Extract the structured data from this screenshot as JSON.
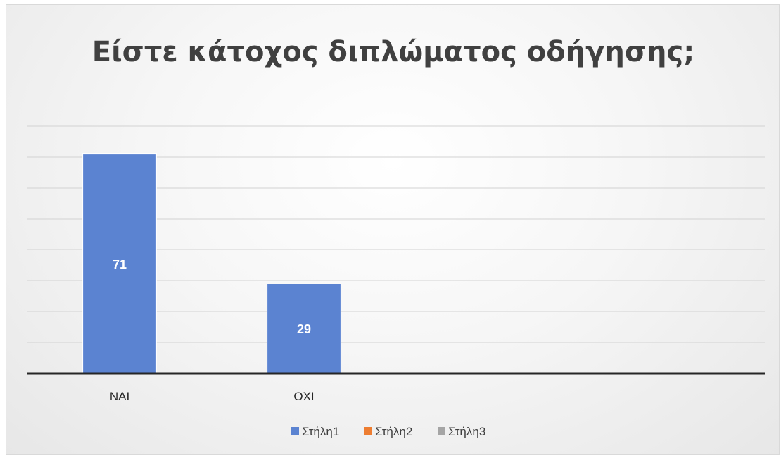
{
  "chart_data": {
    "type": "bar",
    "title": "Είστε κάτοχος διπλώματος οδήγησης;",
    "xlabel": "",
    "ylabel": "",
    "categories": [
      "ΝΑΙ",
      "ΟΧΙ",
      "",
      ""
    ],
    "series": [
      {
        "name": "Στήλη1",
        "values": [
          71,
          29,
          null,
          null
        ],
        "color": "#5b83d1"
      },
      {
        "name": "Στήλη2",
        "values": [
          null,
          null,
          null,
          null
        ],
        "color": "#ed7d31"
      },
      {
        "name": "Στήλη3",
        "values": [
          null,
          null,
          null,
          null
        ],
        "color": "#a5a5a5"
      }
    ],
    "ylim": [
      0,
      80
    ],
    "ytick_step": 10,
    "show_value_axis_labels": false,
    "grid": true,
    "legend": "bottom"
  }
}
